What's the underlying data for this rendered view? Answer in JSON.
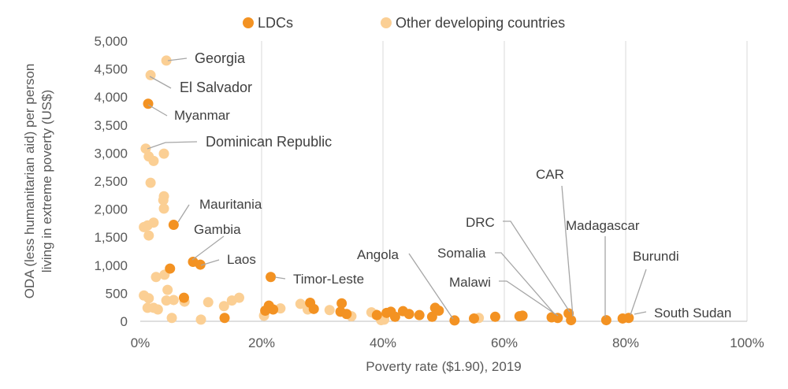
{
  "chart_data": {
    "type": "scatter",
    "xlabel": "Poverty rate ($1.90), 2019",
    "ylabel": "ODA (less humanitarian aid) per person living in extreme poverty (US$)",
    "xlim": [
      0,
      100
    ],
    "ylim": [
      0,
      5000
    ],
    "x_ticks": [
      "0%",
      "20%",
      "40%",
      "60%",
      "80%",
      "100%"
    ],
    "y_ticks": [
      "0",
      "500",
      "1,000",
      "1,500",
      "2,000",
      "2,500",
      "3,000",
      "3,500",
      "4,000",
      "4,500",
      "5,000"
    ],
    "grid": "vertical",
    "legend_position": "top",
    "series": [
      {
        "name": "LDCs",
        "color": "#F39222",
        "points": [
          [
            1.3,
            3880
          ],
          [
            5.5,
            1720
          ],
          [
            4.9,
            940
          ],
          [
            8.7,
            1060
          ],
          [
            9.9,
            1010
          ],
          [
            21.5,
            790
          ],
          [
            7.2,
            420
          ],
          [
            13.9,
            60
          ],
          [
            20.6,
            190
          ],
          [
            21.2,
            280
          ],
          [
            21.9,
            210
          ],
          [
            28.0,
            330
          ],
          [
            28.6,
            220
          ],
          [
            33.2,
            320
          ],
          [
            33.0,
            170
          ],
          [
            34.0,
            130
          ],
          [
            39.0,
            110
          ],
          [
            40.6,
            150
          ],
          [
            41.3,
            170
          ],
          [
            42.0,
            80
          ],
          [
            43.3,
            180
          ],
          [
            44.3,
            130
          ],
          [
            46.0,
            110
          ],
          [
            48.1,
            80
          ],
          [
            48.6,
            240
          ],
          [
            49.2,
            190
          ],
          [
            51.8,
            15
          ],
          [
            55.0,
            50
          ],
          [
            58.5,
            80
          ],
          [
            62.5,
            90
          ],
          [
            63.0,
            100
          ],
          [
            67.8,
            70
          ],
          [
            68.8,
            60
          ],
          [
            70.6,
            140
          ],
          [
            71.0,
            20
          ],
          [
            76.8,
            20
          ],
          [
            79.5,
            50
          ],
          [
            80.5,
            60
          ]
        ]
      },
      {
        "name": "Other developing countries",
        "color": "#FBCF94",
        "points": [
          [
            4.3,
            4650
          ],
          [
            1.7,
            4390
          ],
          [
            0.9,
            3080
          ],
          [
            1.4,
            2940
          ],
          [
            2.2,
            2860
          ],
          [
            3.9,
            2990
          ],
          [
            1.7,
            2470
          ],
          [
            3.9,
            2230
          ],
          [
            3.8,
            2160
          ],
          [
            3.9,
            2010
          ],
          [
            0.6,
            1680
          ],
          [
            1.2,
            1710
          ],
          [
            2.2,
            1760
          ],
          [
            1.4,
            1530
          ],
          [
            2.6,
            790
          ],
          [
            4.0,
            830
          ],
          [
            0.6,
            460
          ],
          [
            1.4,
            410
          ],
          [
            4.5,
            560
          ],
          [
            4.3,
            370
          ],
          [
            5.5,
            380
          ],
          [
            2.2,
            240
          ],
          [
            1.2,
            240
          ],
          [
            2.9,
            210
          ],
          [
            7.3,
            350
          ],
          [
            11.2,
            340
          ],
          [
            13.8,
            270
          ],
          [
            15.1,
            370
          ],
          [
            16.3,
            420
          ],
          [
            5.2,
            60
          ],
          [
            10.0,
            30
          ],
          [
            20.4,
            100
          ],
          [
            23.1,
            230
          ],
          [
            26.4,
            310
          ],
          [
            27.6,
            210
          ],
          [
            31.2,
            200
          ],
          [
            34.8,
            90
          ],
          [
            38.1,
            160
          ],
          [
            38.8,
            120
          ],
          [
            39.6,
            60
          ],
          [
            39.7,
            20
          ],
          [
            40.2,
            30
          ],
          [
            55.8,
            60
          ]
        ]
      }
    ],
    "annotations": [
      "Georgia",
      "El Salvador",
      "Myanmar",
      "Dominican Republic",
      "Mauritania",
      "Gambia",
      "Laos",
      "Timor-Leste",
      "Angola",
      "Somalia",
      "Malawi",
      "DRC",
      "CAR",
      "Madagascar",
      "Burundi",
      "South Sudan"
    ]
  }
}
